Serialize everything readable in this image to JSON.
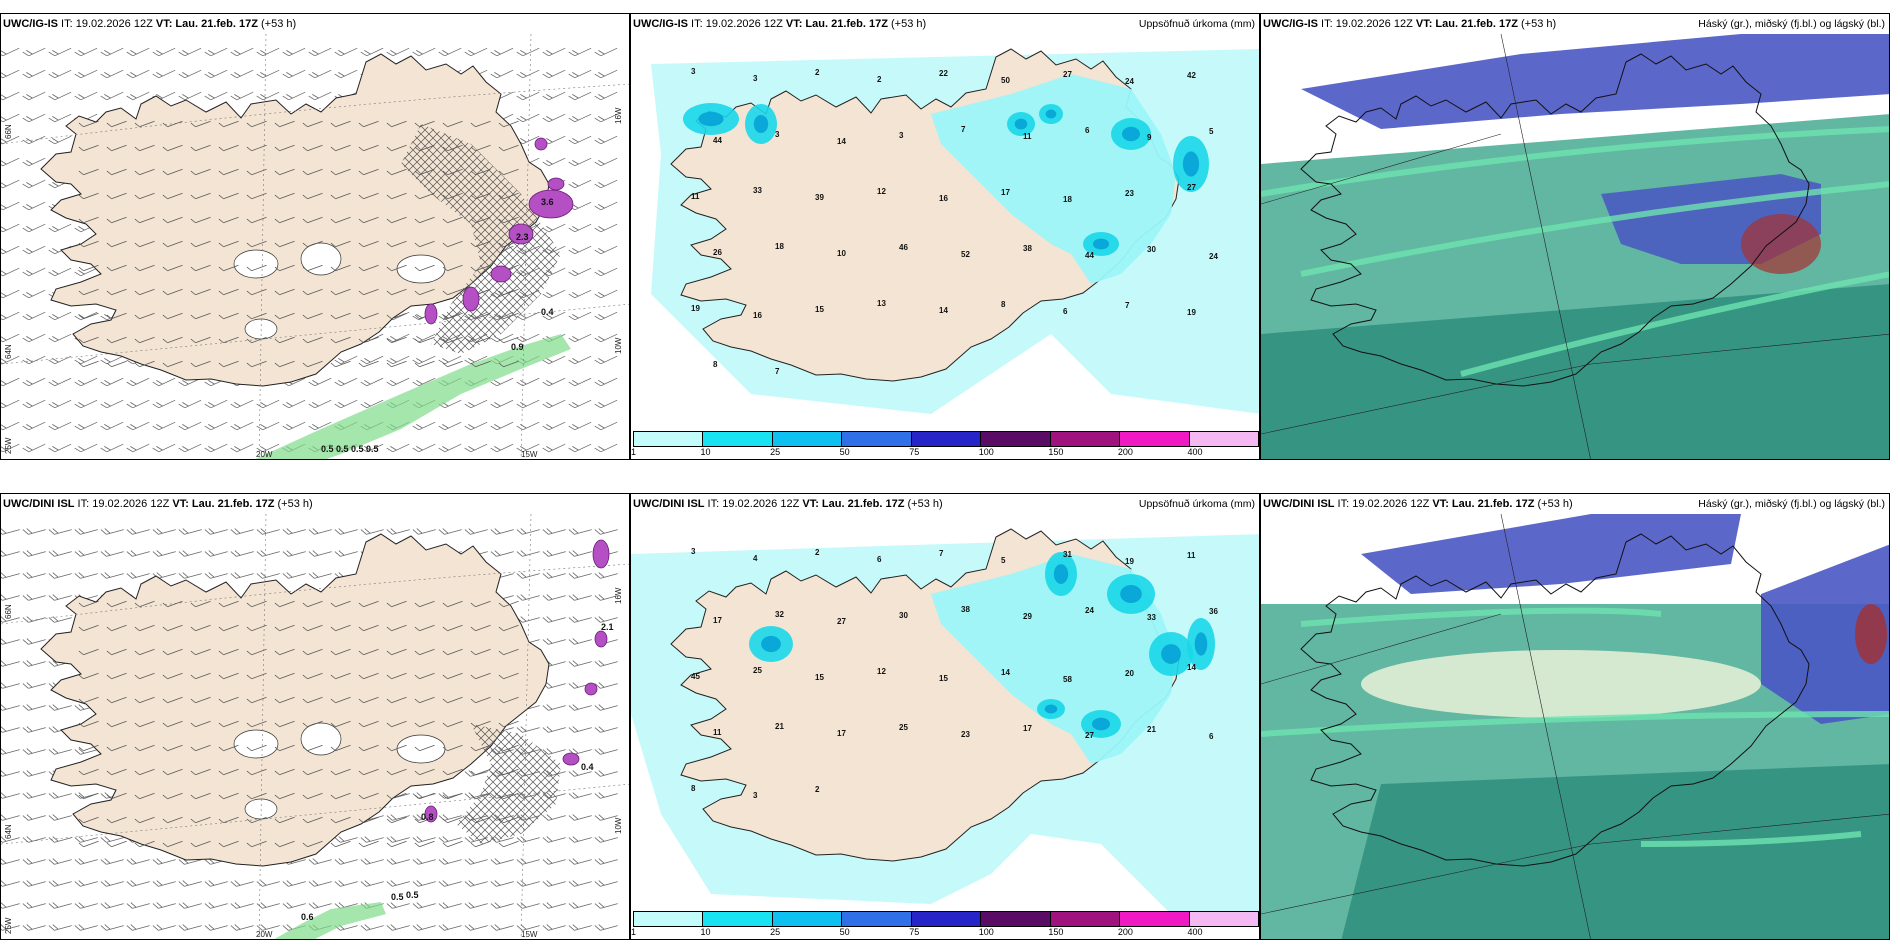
{
  "colors": {
    "land": "#f4e4d3",
    "sea_light": "#c6fafa",
    "precip_light": "#9cf5f8",
    "precip_mid": "#19d7e9",
    "precip_dark": "#0aa8d8",
    "cloud_high": "#4a56c4",
    "cloud_mid": "#2f8f7c",
    "cloud_low": "#58b39c",
    "wind_barb": "#666666",
    "hatch": "#555555",
    "purple_contour": "#b54fc4",
    "green_band": "#7fdc8a"
  },
  "panels": [
    {
      "id": "top-left",
      "model": "UWC/IG-IS",
      "it_label": "IT:",
      "it_value": "19.02.2026 12Z",
      "vt_label": "VT:",
      "vt_value": "Lau. 21.feb. 17Z",
      "lead": "(+53 h)",
      "legend_title": "",
      "lat_labels": [
        "66N",
        "64N",
        "25W"
      ],
      "lon_labels": [
        "20W",
        "15W"
      ],
      "right_labels": [
        "16W",
        "10W"
      ],
      "value_labels": [
        "0.5",
        "0.5",
        "0.5",
        "0.5",
        "3.6",
        "2.3",
        "0.4",
        "0.9"
      ]
    },
    {
      "id": "top-middle",
      "model": "UWC/IG-IS",
      "it_label": "IT:",
      "it_value": "19.02.2026 12Z",
      "vt_label": "VT:",
      "vt_value": "Lau. 21.feb. 17Z",
      "lead": "(+53 h)",
      "legend_title": "Uppsöfnuð úrkoma (mm)",
      "colorbar_ticks": [
        "1",
        "10",
        "25",
        "50",
        "75",
        "100",
        "150",
        "200",
        "400"
      ],
      "colorbar_colors": [
        "#c4fbfb",
        "#19e3f2",
        "#0fc1f0",
        "#2f6fe8",
        "#2626c8",
        "#5a0b66",
        "#a0127e",
        "#f01ac4",
        "#f4b8f2"
      ],
      "precip_labels": [
        "3",
        "3",
        "2",
        "2",
        "22",
        "50",
        "27",
        "24",
        "42",
        "44",
        "3",
        "14",
        "3",
        "7",
        "11",
        "6",
        "9",
        "5",
        "11",
        "33",
        "39",
        "12",
        "16",
        "17",
        "18",
        "23",
        "27",
        "26",
        "18",
        "10",
        "46",
        "52",
        "38",
        "44",
        "30",
        "24",
        "19",
        "16",
        "15",
        "13",
        "14",
        "8",
        "6",
        "7",
        "19",
        "8",
        "7"
      ]
    },
    {
      "id": "top-right",
      "model": "UWC/IG-IS",
      "it_label": "IT:",
      "it_value": "19.02.2026 12Z",
      "vt_label": "VT:",
      "vt_value": "Lau. 21.feb. 17Z",
      "lead": "(+53 h)",
      "legend_title": "Háský (gr.), miðský (fj.bl.) og lágský (bl.)"
    },
    {
      "id": "bottom-left",
      "model": "UWC/DINI ISL",
      "it_label": "IT:",
      "it_value": "19.02.2026 12Z",
      "vt_label": "VT:",
      "vt_value": "Lau. 21.feb. 17Z",
      "lead": "(+53 h)",
      "legend_title": "",
      "lat_labels": [
        "66N",
        "64N",
        "25W"
      ],
      "lon_labels": [
        "20W",
        "15W"
      ],
      "right_labels": [
        "16W",
        "10W"
      ],
      "value_labels": [
        "0.5",
        "0.5",
        "2.1",
        "0.4",
        "0.6",
        "0.8"
      ]
    },
    {
      "id": "bottom-middle",
      "model": "UWC/DINI ISL",
      "it_label": "IT:",
      "it_value": "19.02.2026 12Z",
      "vt_label": "VT:",
      "vt_value": "Lau. 21.feb. 17Z",
      "lead": "(+53 h)",
      "legend_title": "Uppsöfnuð úrkoma (mm)",
      "colorbar_ticks": [
        "1",
        "10",
        "25",
        "50",
        "75",
        "100",
        "150",
        "200",
        "400"
      ],
      "colorbar_colors": [
        "#c4fbfb",
        "#19e3f2",
        "#0fc1f0",
        "#2f6fe8",
        "#2626c8",
        "#5a0b66",
        "#a0127e",
        "#f01ac4",
        "#f4b8f2"
      ],
      "precip_labels": [
        "3",
        "4",
        "2",
        "6",
        "7",
        "5",
        "31",
        "19",
        "11",
        "17",
        "32",
        "27",
        "30",
        "38",
        "29",
        "24",
        "33",
        "36",
        "45",
        "25",
        "15",
        "12",
        "15",
        "14",
        "58",
        "20",
        "14",
        "11",
        "21",
        "17",
        "25",
        "23",
        "17",
        "27",
        "21",
        "6",
        "8",
        "3",
        "2"
      ]
    },
    {
      "id": "bottom-right",
      "model": "UWC/DINI ISL",
      "it_label": "IT:",
      "it_value": "19.02.2026 12Z",
      "vt_label": "VT:",
      "vt_value": "Lau. 21.feb. 17Z",
      "lead": "(+53 h)",
      "legend_title": "Háský (gr.), miðský (fj.bl.) og lágský (bl.)"
    }
  ]
}
